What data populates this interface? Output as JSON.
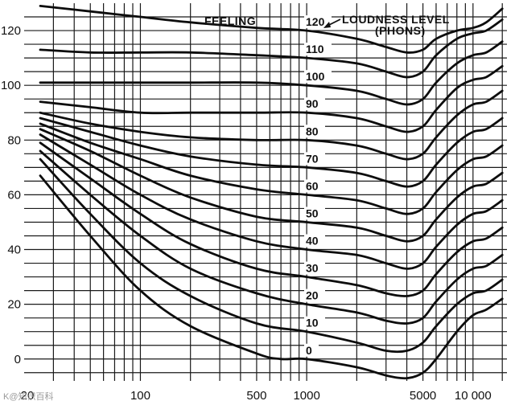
{
  "chart_data": {
    "type": "line",
    "title": "",
    "xlabel": "",
    "ylabel": "",
    "x_scale": "log",
    "xlim": [
      20,
      16000
    ],
    "ylim": [
      -8,
      130
    ],
    "x_tick_labels": [
      {
        "value": 20,
        "label": "20"
      },
      {
        "value": 100,
        "label": "100"
      },
      {
        "value": 500,
        "label": "500"
      },
      {
        "value": 1000,
        "label": "1000"
      },
      {
        "value": 5000,
        "label": "5000"
      },
      {
        "value": 10000,
        "label": "10 000"
      }
    ],
    "y_tick_labels": [
      {
        "value": 0,
        "label": "0"
      },
      {
        "value": 20,
        "label": "20"
      },
      {
        "value": 40,
        "label": "40"
      },
      {
        "value": 60,
        "label": "60"
      },
      {
        "value": 80,
        "label": "80"
      },
      {
        "value": 100,
        "label": "100"
      },
      {
        "value": 120,
        "label": "120"
      }
    ],
    "annotations": {
      "feeling": "FEELING",
      "loudness_line1": "LOUDNESS LEVEL",
      "loudness_line2": "(PHONS)"
    },
    "watermark": "K@知识百科",
    "grid": true,
    "series": [
      {
        "name": "0",
        "x": [
          25,
          50,
          100,
          200,
          500,
          700,
          1000,
          2000,
          3000,
          4000,
          5000,
          6000,
          8000,
          10000,
          12000,
          15000
        ],
        "y": [
          67,
          45,
          25,
          12,
          2,
          0,
          0,
          -3,
          -6,
          -7,
          -5,
          0,
          10,
          16,
          18,
          22
        ]
      },
      {
        "name": "10",
        "x": [
          25,
          50,
          100,
          200,
          500,
          1000,
          2000,
          3000,
          4000,
          5000,
          6000,
          8000,
          10000,
          12000,
          15000
        ],
        "y": [
          73,
          53,
          35,
          23,
          13,
          10,
          6,
          3,
          3,
          6,
          12,
          20,
          24,
          25,
          29
        ]
      },
      {
        "name": "20",
        "x": [
          25,
          50,
          100,
          200,
          500,
          1000,
          2000,
          3000,
          4000,
          5000,
          6000,
          8000,
          10000,
          12000,
          15000
        ],
        "y": [
          76,
          60,
          45,
          33,
          24,
          20,
          17,
          14,
          13,
          15,
          21,
          29,
          33,
          34,
          38
        ]
      },
      {
        "name": "30",
        "x": [
          25,
          50,
          100,
          200,
          500,
          1000,
          2000,
          3000,
          4000,
          5000,
          6000,
          8000,
          10000,
          12000,
          15000
        ],
        "y": [
          79,
          66,
          53,
          42,
          33,
          30,
          27,
          24,
          23,
          25,
          31,
          39,
          43,
          44,
          48
        ]
      },
      {
        "name": "40",
        "x": [
          25,
          50,
          100,
          200,
          500,
          1000,
          2000,
          3000,
          4000,
          5000,
          6000,
          8000,
          10000,
          12000,
          15000
        ],
        "y": [
          82,
          71,
          60,
          51,
          43,
          40,
          38,
          35,
          33,
          35,
          41,
          49,
          53,
          54,
          58
        ]
      },
      {
        "name": "50",
        "x": [
          25,
          50,
          100,
          200,
          500,
          1000,
          2000,
          3000,
          4000,
          5000,
          6000,
          8000,
          10000,
          12000,
          15000
        ],
        "y": [
          84,
          76,
          67,
          59,
          52,
          50,
          48,
          45,
          43,
          45,
          51,
          59,
          63,
          64,
          68
        ]
      },
      {
        "name": "60",
        "x": [
          25,
          50,
          100,
          200,
          500,
          1000,
          2000,
          3000,
          4000,
          5000,
          6000,
          8000,
          10000,
          12000,
          15000
        ],
        "y": [
          86,
          79,
          73,
          67,
          62,
          60,
          58,
          55,
          53,
          55,
          61,
          69,
          73,
          74,
          78
        ]
      },
      {
        "name": "70",
        "x": [
          25,
          50,
          100,
          200,
          500,
          1000,
          2000,
          3000,
          4000,
          5000,
          6000,
          8000,
          10000,
          12000,
          15000
        ],
        "y": [
          88,
          83,
          78,
          74,
          71,
          70,
          68,
          65,
          63,
          65,
          71,
          79,
          83,
          84,
          88
        ]
      },
      {
        "name": "80",
        "x": [
          25,
          50,
          100,
          200,
          500,
          1000,
          2000,
          3000,
          4000,
          5000,
          6000,
          8000,
          10000,
          12000,
          15000
        ],
        "y": [
          90,
          86,
          83,
          81,
          80,
          80,
          78,
          75,
          73,
          75,
          81,
          89,
          93,
          94,
          98
        ]
      },
      {
        "name": "90",
        "x": [
          25,
          50,
          100,
          200,
          500,
          1000,
          2000,
          3000,
          4000,
          5000,
          6000,
          8000,
          10000,
          12000,
          15000
        ],
        "y": [
          94,
          92,
          90,
          90,
          90,
          90,
          88,
          85,
          83,
          85,
          91,
          99,
          102,
          103,
          107
        ]
      },
      {
        "name": "100",
        "x": [
          25,
          50,
          100,
          200,
          500,
          1000,
          2000,
          3000,
          4000,
          5000,
          6000,
          8000,
          10000,
          12000,
          15000
        ],
        "y": [
          101,
          101,
          101,
          101,
          101,
          100,
          98,
          95,
          93,
          95,
          101,
          108,
          111,
          112,
          116
        ]
      },
      {
        "name": "110",
        "x": [
          25,
          50,
          100,
          200,
          500,
          1000,
          2000,
          3000,
          4000,
          5000,
          6000,
          8000,
          10000,
          12000,
          15000
        ],
        "y": [
          113,
          112,
          112,
          112,
          111,
          110,
          108,
          105,
          103,
          105,
          111,
          117,
          119,
          120,
          124
        ]
      },
      {
        "name": "120",
        "x": [
          25,
          50,
          100,
          200,
          500,
          1000,
          2000,
          3000,
          4000,
          5000,
          6000,
          8000,
          10000,
          12000,
          15000
        ],
        "y": [
          129,
          127,
          125,
          123,
          121,
          120,
          117,
          114,
          112,
          113,
          117,
          120,
          121,
          123,
          128
        ]
      }
    ]
  }
}
